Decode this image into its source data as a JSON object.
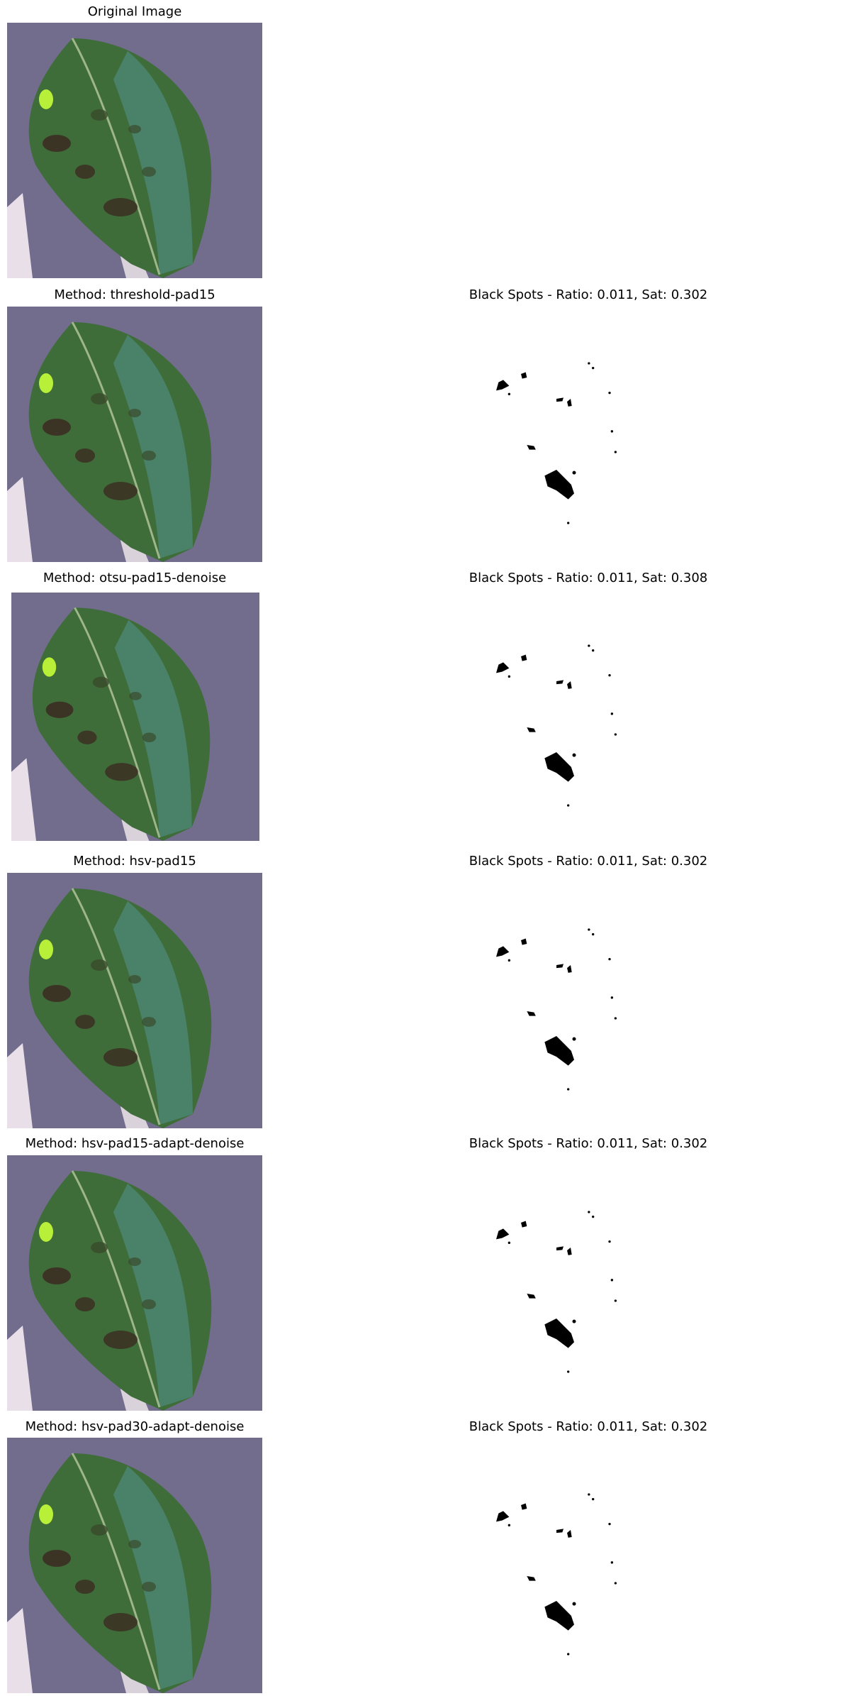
{
  "figure": {
    "rows": [
      {
        "title": "Original Image",
        "mask_title": ""
      },
      {
        "title": "Method: threshold-pad15",
        "mask_title": "Black Spots - Ratio: 0.011, Sat: 0.302"
      },
      {
        "title": "Method: otsu-pad15-denoise",
        "mask_title": "Black Spots - Ratio: 0.011, Sat: 0.308"
      },
      {
        "title": "Method: hsv-pad15",
        "mask_title": "Black Spots - Ratio: 0.011, Sat: 0.302"
      },
      {
        "title": "Method: hsv-pad15-adapt-denoise",
        "mask_title": "Black Spots - Ratio: 0.011, Sat: 0.302"
      },
      {
        "title": "Method: hsv-pad30-adapt-denoise",
        "mask_title": "Black Spots - Ratio: 0.011, Sat: 0.302"
      }
    ]
  }
}
